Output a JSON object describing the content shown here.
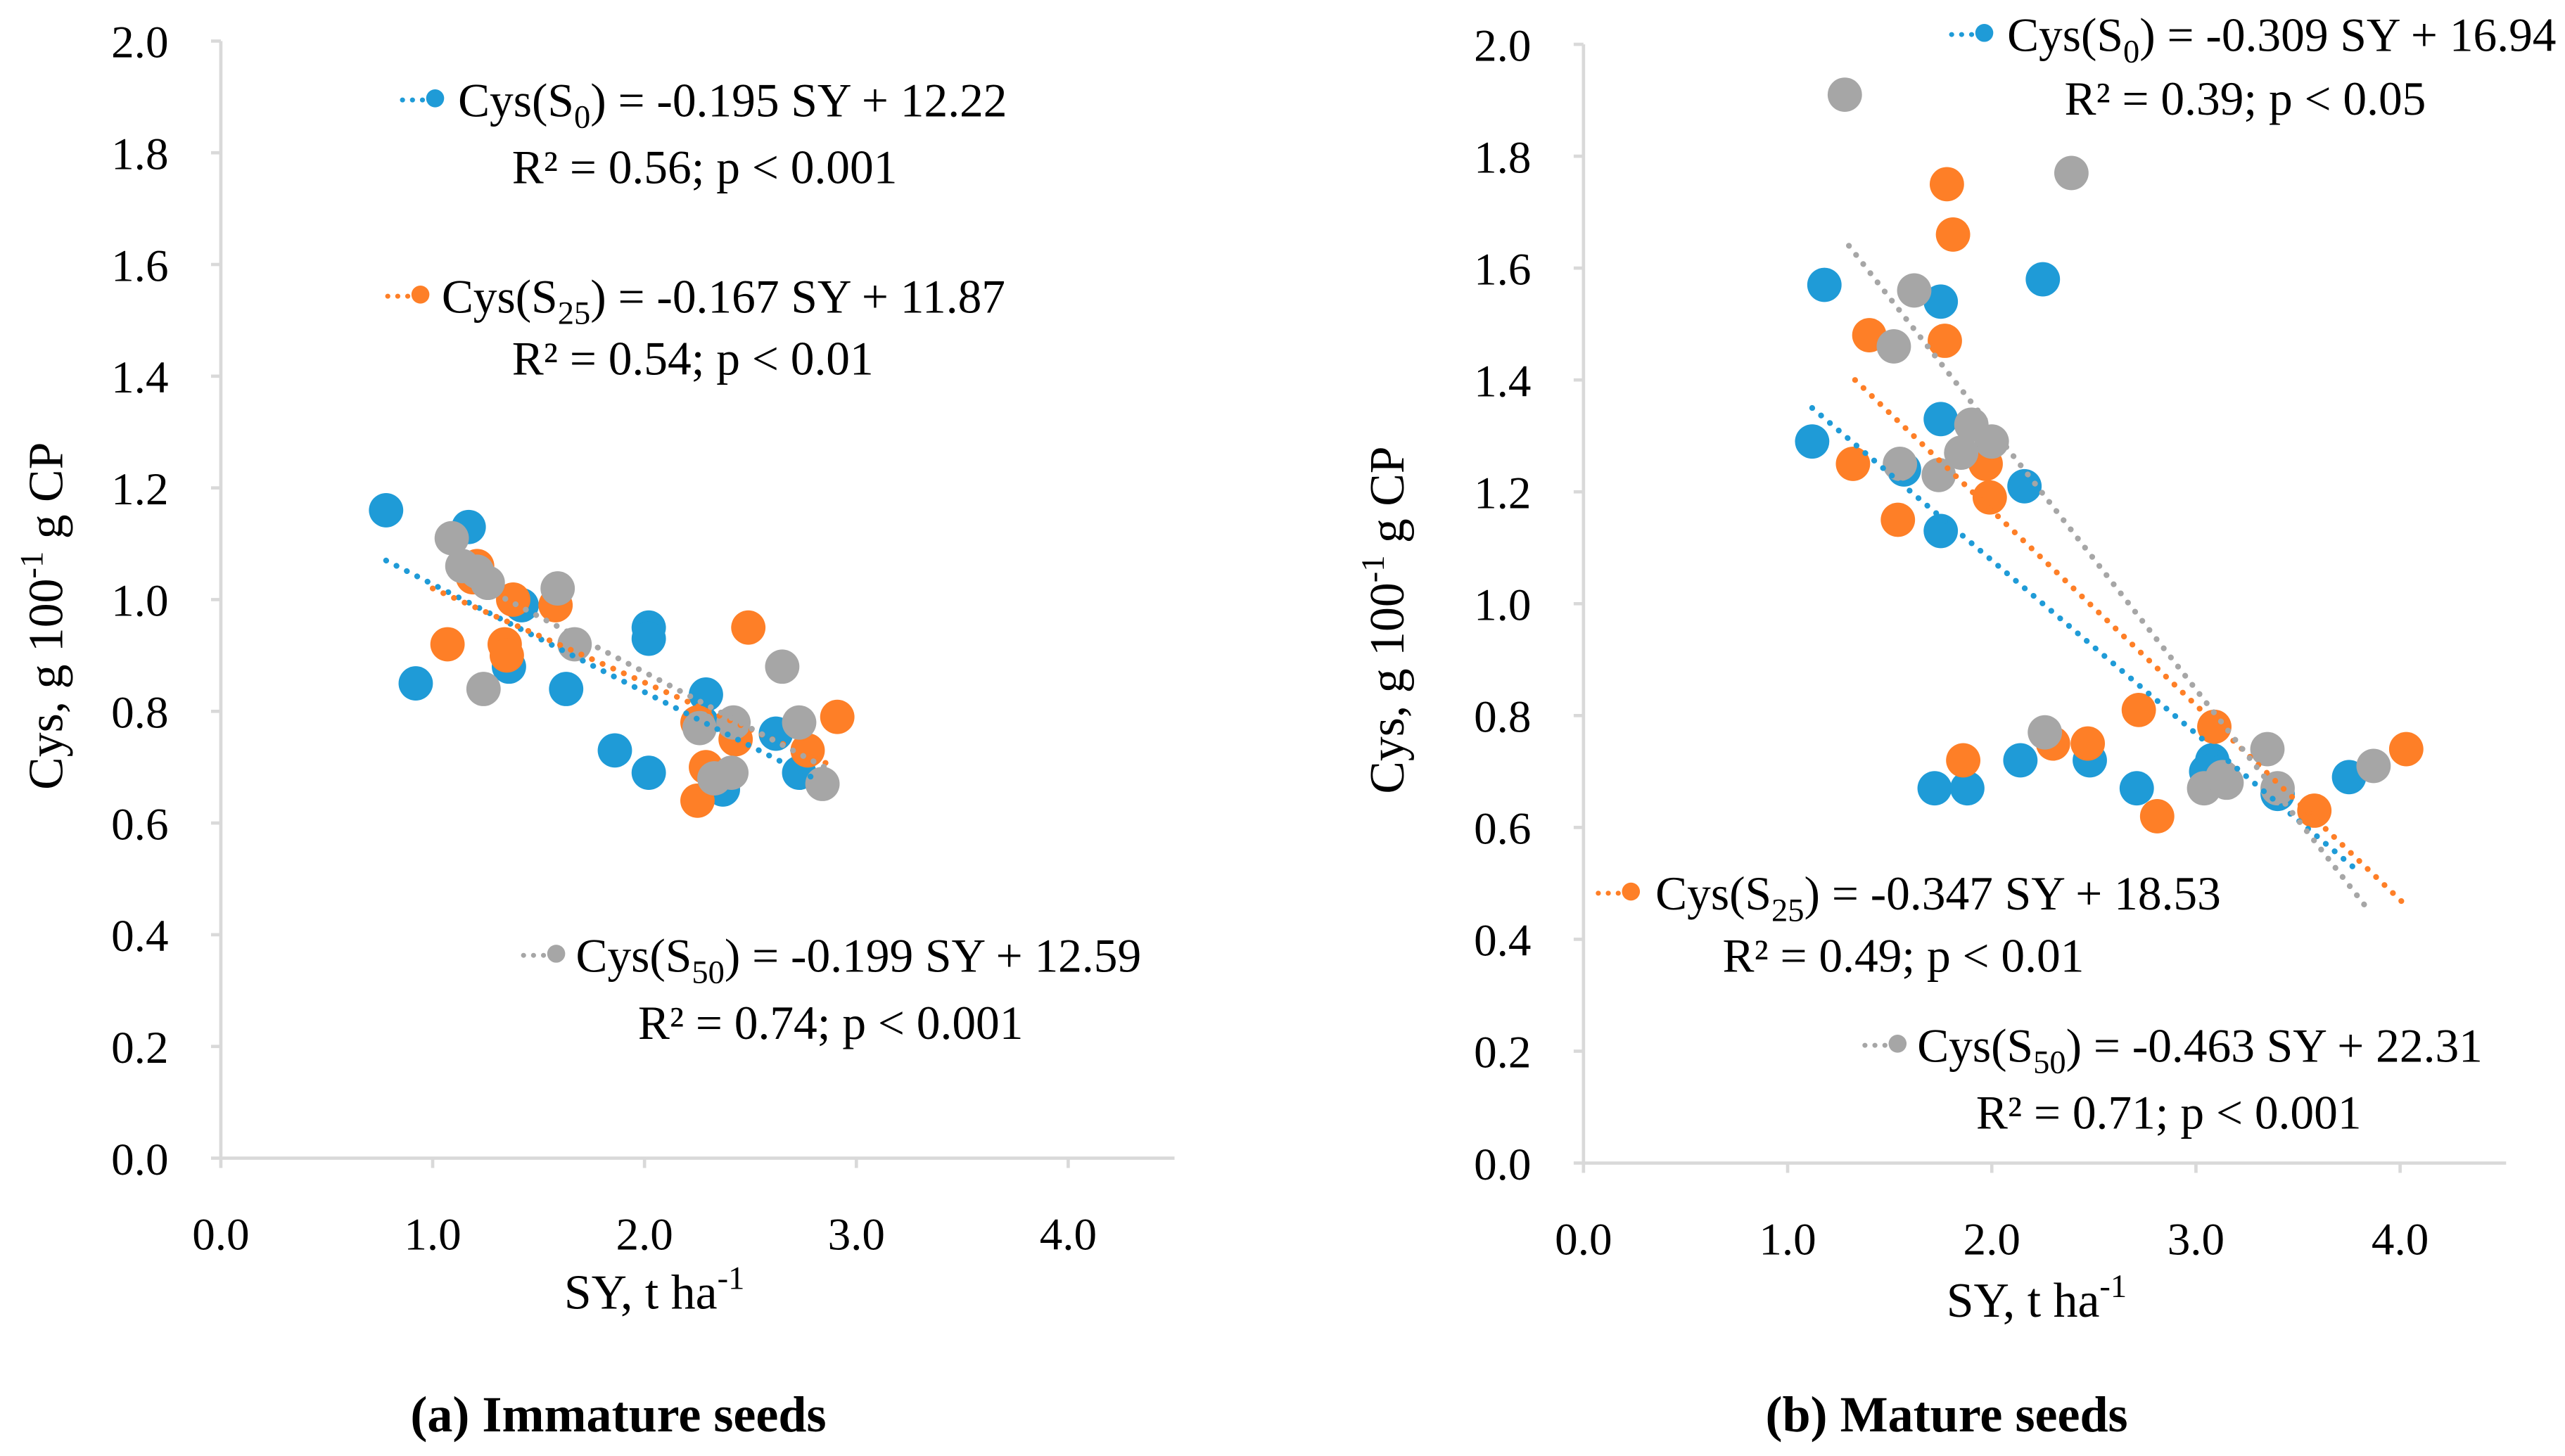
{
  "colors": {
    "S0": "#1f9bd7",
    "S25": "#fe7f27",
    "S50": "#a6a6a6",
    "axis": "#d9d9d9"
  },
  "chart_data": [
    {
      "type": "scatter",
      "caption": "(a) Immature seeds",
      "xlabel": {
        "main": "SY, t ha",
        "sup": "-1"
      },
      "ylabel": {
        "main": "Cys, g 100",
        "sup": "-1",
        "rest": " g CP"
      },
      "xlim": [
        0,
        4.5
      ],
      "ylim": [
        0,
        2.0
      ],
      "xticks": [
        "0.0",
        "1.0",
        "2.0",
        "3.0",
        "4.0"
      ],
      "yticks": [
        "0.0",
        "0.2",
        "0.4",
        "0.6",
        "0.8",
        "1.0",
        "1.2",
        "1.4",
        "1.6",
        "1.8",
        "2.0"
      ],
      "grid": false,
      "series": [
        {
          "name": "S0",
          "color_key": "S0",
          "points": [
            [
              0.78,
              1.16
            ],
            [
              1.17,
              1.13
            ],
            [
              0.92,
              0.85
            ],
            [
              1.36,
              0.88
            ],
            [
              1.42,
              0.99
            ],
            [
              1.63,
              0.84
            ],
            [
              1.86,
              0.73
            ],
            [
              2.02,
              0.95
            ],
            [
              2.02,
              0.93
            ],
            [
              2.02,
              0.69
            ],
            [
              2.29,
              0.83
            ],
            [
              2.62,
              0.76
            ],
            [
              2.73,
              0.69
            ],
            [
              2.37,
              0.66
            ],
            [
              2.27,
              0.78
            ]
          ],
          "trend": [
            [
              0.78,
              1.07
            ],
            [
              2.8,
              0.68
            ]
          ],
          "equation": {
            "pre": "Cys(S",
            "sub": "0",
            "post": ") = -0.195 SY + 12.22",
            "stats": "R² = 0.56; p < 0.001"
          }
        },
        {
          "name": "S25",
          "color_key": "S25",
          "points": [
            [
              1.07,
              0.92
            ],
            [
              1.21,
              1.06
            ],
            [
              1.38,
              1.0
            ],
            [
              1.34,
              0.92
            ],
            [
              1.35,
              0.9
            ],
            [
              1.58,
              0.99
            ],
            [
              2.49,
              0.95
            ],
            [
              2.91,
              0.79
            ],
            [
              2.25,
              0.78
            ],
            [
              2.29,
              0.7
            ],
            [
              2.25,
              0.64
            ],
            [
              2.43,
              0.75
            ],
            [
              2.77,
              0.73
            ],
            [
              1.19,
              1.04
            ]
          ],
          "trend": [
            [
              1.0,
              1.02
            ],
            [
              2.9,
              0.7
            ]
          ],
          "equation": {
            "pre": "Cys(S",
            "sub": "25",
            "post": ") = -0.167 SY + 11.87",
            "stats": "R² = 0.54; p < 0.01"
          }
        },
        {
          "name": "S50",
          "color_key": "S50",
          "points": [
            [
              1.09,
              1.11
            ],
            [
              1.14,
              1.06
            ],
            [
              1.26,
              1.03
            ],
            [
              1.21,
              1.05
            ],
            [
              1.24,
              0.84
            ],
            [
              1.59,
              1.02
            ],
            [
              1.67,
              0.92
            ],
            [
              2.65,
              0.88
            ],
            [
              2.73,
              0.78
            ],
            [
              2.84,
              0.67
            ],
            [
              2.33,
              0.68
            ],
            [
              2.41,
              0.69
            ],
            [
              2.42,
              0.78
            ],
            [
              2.26,
              0.77
            ]
          ],
          "trend": [
            [
              1.1,
              1.05
            ],
            [
              2.85,
              0.7
            ]
          ],
          "equation": {
            "pre": "Cys(S",
            "sub": "50",
            "post": ") = -0.199 SY + 12.59",
            "stats": "R² = 0.74; p < 0.001"
          }
        }
      ]
    },
    {
      "type": "scatter",
      "caption": "(b) Mature seeds",
      "xlabel": {
        "main": "SY, t ha",
        "sup": "-1"
      },
      "ylabel": {
        "main": "Cys, g 100",
        "sup": "-1",
        "rest": " g CP"
      },
      "xlim": [
        0,
        4.5
      ],
      "ylim": [
        0,
        2.0
      ],
      "xticks": [
        "0.0",
        "1.0",
        "2.0",
        "3.0",
        "4.0"
      ],
      "yticks": [
        "0.0",
        "0.2",
        "0.4",
        "0.6",
        "0.8",
        "1.0",
        "1.2",
        "1.4",
        "1.6",
        "1.8",
        "2.0"
      ],
      "grid": false,
      "series": [
        {
          "name": "S0",
          "color_key": "S0",
          "points": [
            [
              1.12,
              1.29
            ],
            [
              1.18,
              1.57
            ],
            [
              1.75,
              1.54
            ],
            [
              1.75,
              1.33
            ],
            [
              1.57,
              1.24
            ],
            [
              1.75,
              1.13
            ],
            [
              2.16,
              1.21
            ],
            [
              2.25,
              1.58
            ],
            [
              1.72,
              0.67
            ],
            [
              1.88,
              0.67
            ],
            [
              2.14,
              0.72
            ],
            [
              2.48,
              0.72
            ],
            [
              2.71,
              0.67
            ],
            [
              3.08,
              0.72
            ],
            [
              3.4,
              0.66
            ],
            [
              3.75,
              0.69
            ],
            [
              3.05,
              0.7
            ]
          ],
          "trend": [
            [
              1.12,
              1.35
            ],
            [
              3.8,
              0.52
            ]
          ],
          "equation": {
            "pre": "Cys(S",
            "sub": "0",
            "post": ") = -0.309 SY + 16.94",
            "stats": "R² = 0.39; p < 0.05"
          }
        },
        {
          "name": "S25",
          "color_key": "S25",
          "points": [
            [
              1.4,
              1.48
            ],
            [
              1.78,
              1.75
            ],
            [
              1.81,
              1.66
            ],
            [
              1.77,
              1.47
            ],
            [
              1.32,
              1.25
            ],
            [
              1.54,
              1.15
            ],
            [
              1.97,
              1.25
            ],
            [
              1.99,
              1.19
            ],
            [
              1.86,
              0.72
            ],
            [
              2.3,
              0.75
            ],
            [
              2.47,
              0.75
            ],
            [
              2.72,
              0.81
            ],
            [
              2.81,
              0.62
            ],
            [
              3.09,
              0.78
            ],
            [
              3.58,
              0.63
            ],
            [
              4.03,
              0.74
            ]
          ],
          "trend": [
            [
              1.33,
              1.4
            ],
            [
              4.03,
              0.46
            ]
          ],
          "equation": {
            "pre": "Cys(S",
            "sub": "25",
            "post": ") = -0.347 SY + 18.53",
            "stats": "R² = 0.49; p < 0.01"
          }
        },
        {
          "name": "S50",
          "color_key": "S50",
          "points": [
            [
              1.28,
              1.91
            ],
            [
              2.39,
              1.77
            ],
            [
              1.62,
              1.56
            ],
            [
              1.52,
              1.46
            ],
            [
              1.74,
              1.23
            ],
            [
              1.9,
              1.32
            ],
            [
              2.0,
              1.29
            ],
            [
              1.85,
              1.27
            ],
            [
              2.26,
              0.77
            ],
            [
              3.04,
              0.67
            ],
            [
              3.13,
              0.69
            ],
            [
              3.35,
              0.74
            ],
            [
              3.4,
              0.67
            ],
            [
              3.87,
              0.71
            ],
            [
              3.15,
              0.68
            ],
            [
              1.55,
              1.25
            ]
          ],
          "trend": [
            [
              1.3,
              1.64
            ],
            [
              3.85,
              0.45
            ]
          ],
          "equation": {
            "pre": "Cys(S",
            "sub": "50",
            "post": ") = -0.463 SY + 22.31",
            "stats": "R² = 0.71; p < 0.001"
          }
        }
      ]
    }
  ]
}
